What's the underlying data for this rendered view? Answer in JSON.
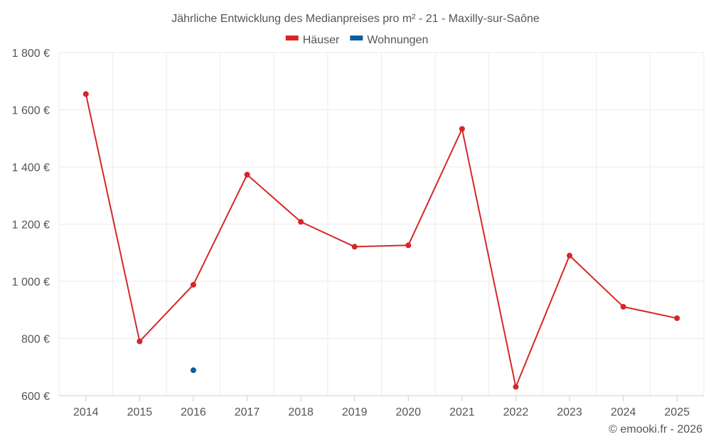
{
  "chart_data": {
    "type": "line",
    "title": "Jährliche Entwicklung des Medianpreises pro m² - 21 - Maxilly-sur-Saône",
    "categories": [
      "2014",
      "2015",
      "2016",
      "2017",
      "2018",
      "2019",
      "2020",
      "2021",
      "2022",
      "2023",
      "2024",
      "2025"
    ],
    "series": [
      {
        "name": "Häuser",
        "color": "#d62728",
        "values": [
          1655,
          790,
          988,
          1373,
          1208,
          1121,
          1126,
          1533,
          631,
          1090,
          911,
          871
        ]
      },
      {
        "name": "Wohnungen",
        "color": "#0c5d9b",
        "values": [
          null,
          null,
          689,
          null,
          null,
          null,
          null,
          null,
          null,
          null,
          null,
          null
        ]
      }
    ],
    "yticks": [
      600,
      800,
      1000,
      1200,
      1400,
      1600,
      1800
    ],
    "ytick_labels": [
      "600 €",
      "800 €",
      "1 000 €",
      "1 200 €",
      "1 400 €",
      "1 600 €",
      "1 800 €"
    ],
    "ylim": [
      600,
      1800
    ],
    "grid": true,
    "legend_position": "top-center",
    "credit": "© emooki.fr - 2026"
  }
}
